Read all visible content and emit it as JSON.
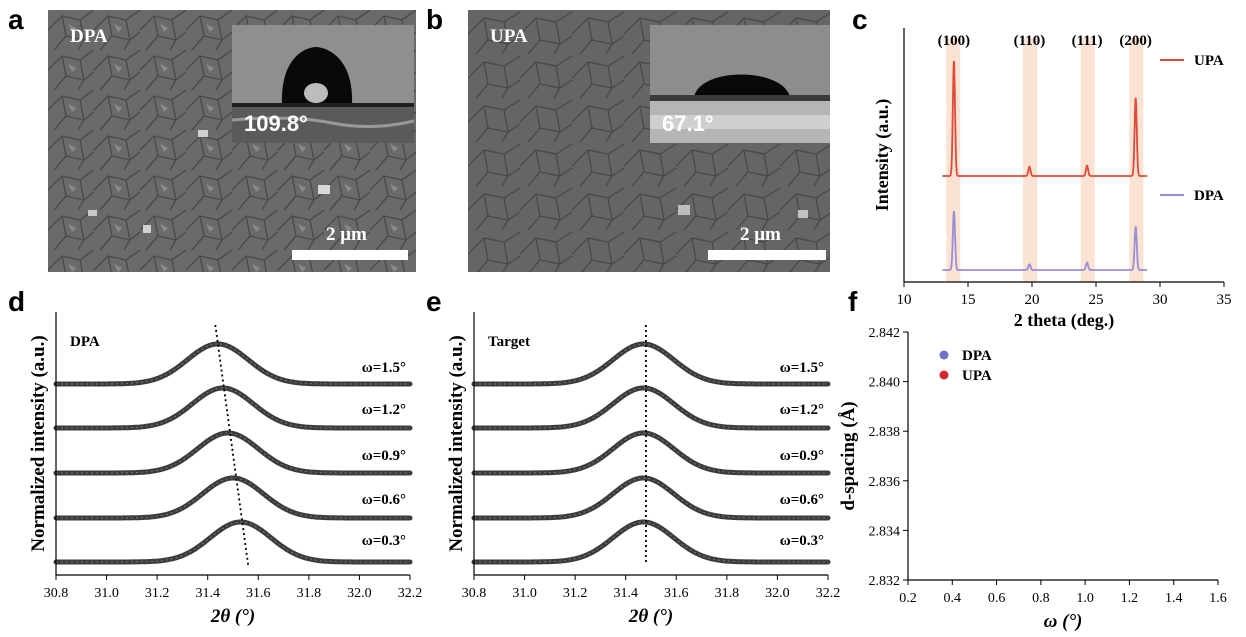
{
  "panels": {
    "a": {
      "label": "a",
      "sample": "DPA",
      "contact_angle": "109.8°",
      "scale": "2 μm"
    },
    "b": {
      "label": "b",
      "sample": "UPA",
      "contact_angle": "67.1°",
      "scale": "2 μm"
    },
    "c": {
      "label": "c"
    },
    "d": {
      "label": "d"
    },
    "e": {
      "label": "e"
    },
    "f": {
      "label": "f"
    }
  },
  "chart_data": [
    {
      "id": "c",
      "type": "line",
      "xlabel": "2 theta (deg.)",
      "ylabel": "Intensity (a.u.)",
      "xlim": [
        10,
        35
      ],
      "xticks": [
        10,
        15,
        20,
        25,
        30,
        35
      ],
      "peak_labels": [
        {
          "label": "(100)",
          "x": 13.9
        },
        {
          "label": "(110)",
          "x": 19.8
        },
        {
          "label": "(111)",
          "x": 24.3
        },
        {
          "label": "(200)",
          "x": 28.1
        }
      ],
      "highlight_bands": [
        [
          13.3,
          14.4
        ],
        [
          19.3,
          20.4
        ],
        [
          23.8,
          24.9
        ],
        [
          27.6,
          28.7
        ]
      ],
      "series": [
        {
          "name": "UPA",
          "color": "#e0493a",
          "peaks": [
            [
              13.9,
              1.0
            ],
            [
              19.8,
              0.08
            ],
            [
              24.3,
              0.09
            ],
            [
              28.1,
              0.68
            ]
          ]
        },
        {
          "name": "DPA",
          "color": "#9a8fd6",
          "peaks": [
            [
              13.9,
              0.72
            ],
            [
              19.8,
              0.07
            ],
            [
              24.3,
              0.09
            ],
            [
              28.1,
              0.53
            ]
          ]
        }
      ],
      "legend": "right"
    },
    {
      "id": "d",
      "type": "line",
      "title": "DPA",
      "xlabel": "2θ (°)",
      "ylabel": "Normalized intensity (a.u.)",
      "xlim": [
        30.8,
        32.2
      ],
      "xticks": [
        30.8,
        31.0,
        31.2,
        31.4,
        31.6,
        31.8,
        32.0,
        32.2
      ],
      "series": [
        {
          "name": "ω=1.5°",
          "peak": 31.44
        },
        {
          "name": "ω=1.2°",
          "peak": 31.46
        },
        {
          "name": "ω=0.9°",
          "peak": 31.48
        },
        {
          "name": "ω=0.6°",
          "peak": 31.5
        },
        {
          "name": "ω=0.3°",
          "peak": 31.53
        }
      ],
      "guide": [
        [
          31.43,
          31.56
        ]
      ]
    },
    {
      "id": "e",
      "type": "line",
      "title": "Target",
      "xlabel": "2θ (°)",
      "ylabel": "Normalized intensity (a.u.)",
      "xlim": [
        30.8,
        32.2
      ],
      "xticks": [
        30.8,
        31.0,
        31.2,
        31.4,
        31.6,
        31.8,
        32.0,
        32.2
      ],
      "series": [
        {
          "name": "ω=1.5°",
          "peak": 31.47
        },
        {
          "name": "ω=1.2°",
          "peak": 31.47
        },
        {
          "name": "ω=0.9°",
          "peak": 31.47
        },
        {
          "name": "ω=0.6°",
          "peak": 31.47
        },
        {
          "name": "ω=0.3°",
          "peak": 31.47
        }
      ],
      "guide": [
        [
          31.48,
          31.48
        ]
      ]
    },
    {
      "id": "f",
      "type": "scatter",
      "xlabel": "ω (°)",
      "ylabel": "d-spacing (Å)",
      "xlim": [
        0.2,
        1.6
      ],
      "ylim": [
        2.832,
        2.842
      ],
      "xticks": [
        0.2,
        0.4,
        0.6,
        0.8,
        1.0,
        1.2,
        1.4,
        1.6
      ],
      "yticks": [
        2.832,
        2.834,
        2.836,
        2.838,
        2.84,
        2.842
      ],
      "series": [
        {
          "name": "DPA",
          "color": "#6f72c8",
          "points": []
        },
        {
          "name": "UPA",
          "color": "#d7262f",
          "points": []
        }
      ],
      "legend": "top-left"
    }
  ]
}
